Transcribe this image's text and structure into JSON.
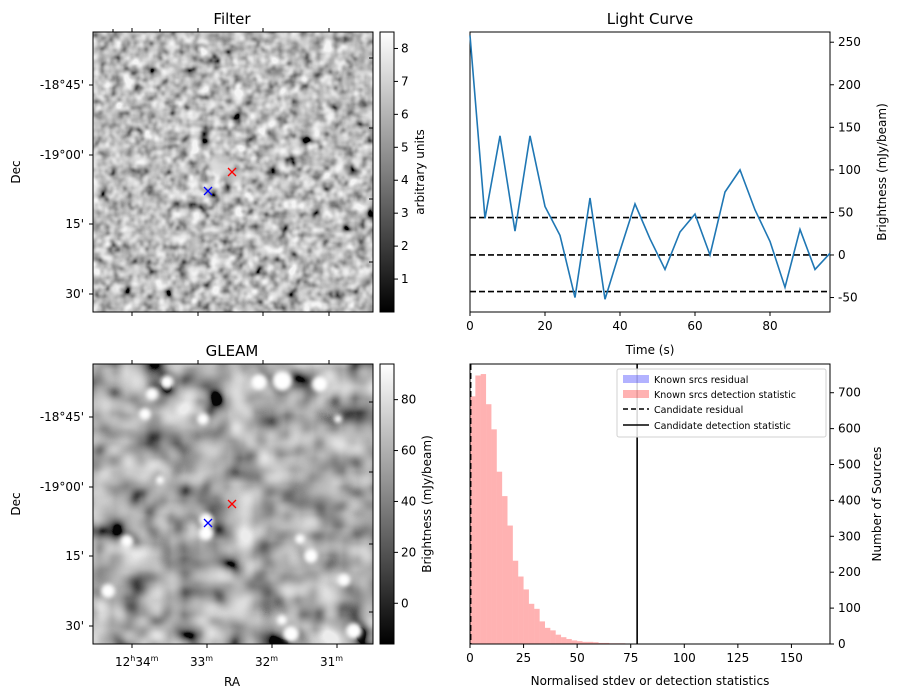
{
  "chart_data": [
    {
      "type": "heatmap",
      "title": "Filter",
      "ylabel": "Dec",
      "y_ticks": [
        "-18°45'",
        "-19°00'",
        "15'",
        "30'"
      ],
      "colorbar": {
        "label": "arbitrary units",
        "range": [
          0,
          8.5
        ],
        "ticks": [
          "1",
          "2",
          "3",
          "4",
          "5",
          "6",
          "7",
          "8"
        ],
        "colormap": "gray"
      },
      "markers": [
        {
          "name": "red-cross",
          "symbol": "x",
          "color": "#ff0000",
          "ra": "12h32m20s",
          "dec": "-19°04'"
        },
        {
          "name": "blue-cross",
          "symbol": "x",
          "color": "#0000ff",
          "ra": "12h32m55s",
          "dec": "-19°08'"
        }
      ]
    },
    {
      "type": "line",
      "title": "Light Curve",
      "xlabel": "Time (s)",
      "ylabel": "Brightness (mJy/beam)",
      "xlim": [
        0,
        96
      ],
      "ylim": [
        -67,
        262
      ],
      "x_ticks": [
        0,
        20,
        40,
        60,
        80
      ],
      "y_ticks": [
        -50,
        0,
        50,
        100,
        150,
        200,
        250
      ],
      "series": [
        {
          "x": [
            0,
            4,
            8,
            12,
            16,
            20,
            24,
            28,
            32,
            36,
            40,
            44,
            48,
            52,
            56,
            60,
            64,
            68,
            72,
            76,
            80,
            84,
            88,
            92,
            96
          ],
          "y": [
            258,
            43,
            140,
            28,
            140,
            57,
            23,
            -50,
            67,
            -52,
            5,
            60,
            19,
            -17,
            27,
            48,
            0,
            74,
            100,
            53,
            16,
            -38,
            30,
            -17,
            2
          ],
          "color": "#1f77b4"
        }
      ],
      "hlines": [
        44,
        0,
        -43
      ],
      "hline_style": "dashed"
    },
    {
      "type": "heatmap",
      "title": "GLEAM",
      "xlabel": "RA",
      "ylabel": "Dec",
      "x_ticks": [
        {
          "h": "12",
          "m": "34",
          "s": "m"
        },
        {
          "h": "",
          "m": "33",
          "s": "m"
        },
        {
          "h": "",
          "m": "32",
          "s": "m"
        },
        {
          "h": "",
          "m": "31",
          "s": "m"
        }
      ],
      "y_ticks": [
        "-18°45'",
        "-19°00'",
        "15'",
        "30'"
      ],
      "colorbar": {
        "label": "Brightness (mJy/beam)",
        "range": [
          -16,
          94
        ],
        "ticks": [
          "0",
          "20",
          "40",
          "60",
          "80"
        ],
        "colormap": "gray"
      },
      "markers": [
        {
          "name": "red-cross",
          "symbol": "x",
          "color": "#ff0000",
          "ra": "12h32m20s",
          "dec": "-19°04'"
        },
        {
          "name": "blue-cross",
          "symbol": "x",
          "color": "#0000ff",
          "ra": "12h32m55s",
          "dec": "-19°08'"
        }
      ]
    },
    {
      "type": "bar",
      "title": "",
      "xlabel": "Normalised stdev or detection statistics",
      "ylabel": "Number of Sources",
      "xlim": [
        0,
        168
      ],
      "ylim": [
        0,
        780
      ],
      "x_ticks": [
        0,
        25,
        50,
        75,
        100,
        125,
        150
      ],
      "y_ticks": [
        0,
        100,
        200,
        300,
        400,
        500,
        600,
        700
      ],
      "bin_width": 2.5,
      "series": [
        {
          "name": "Known srcs residual",
          "color": "#0000ff",
          "opacity": 0.3,
          "bins_start": 0,
          "values": [
            0
          ]
        },
        {
          "name": "Known srcs detection statistic",
          "color": "#ff0000",
          "opacity": 0.3,
          "bins_start": 0,
          "values": [
            690,
            748,
            752,
            668,
            598,
            480,
            412,
            330,
            232,
            188,
            152,
            112,
            98,
            63,
            45,
            38,
            26,
            19,
            14,
            10,
            8,
            6,
            6,
            5,
            3,
            3,
            2,
            2,
            2,
            1,
            1,
            1,
            1,
            1,
            1,
            1,
            1,
            1,
            1,
            1,
            1,
            1,
            1,
            1,
            1,
            1,
            1,
            1,
            1,
            1,
            1,
            1,
            1,
            1,
            1,
            1,
            1,
            1,
            1,
            1,
            1,
            1,
            1,
            1,
            1
          ]
        }
      ],
      "vlines": [
        {
          "name": "Candidate residual",
          "x": 0.3,
          "style": "dashed"
        },
        {
          "name": "Candidate detection statistic",
          "x": 78,
          "style": "solid"
        }
      ],
      "legend": "top-right"
    }
  ]
}
